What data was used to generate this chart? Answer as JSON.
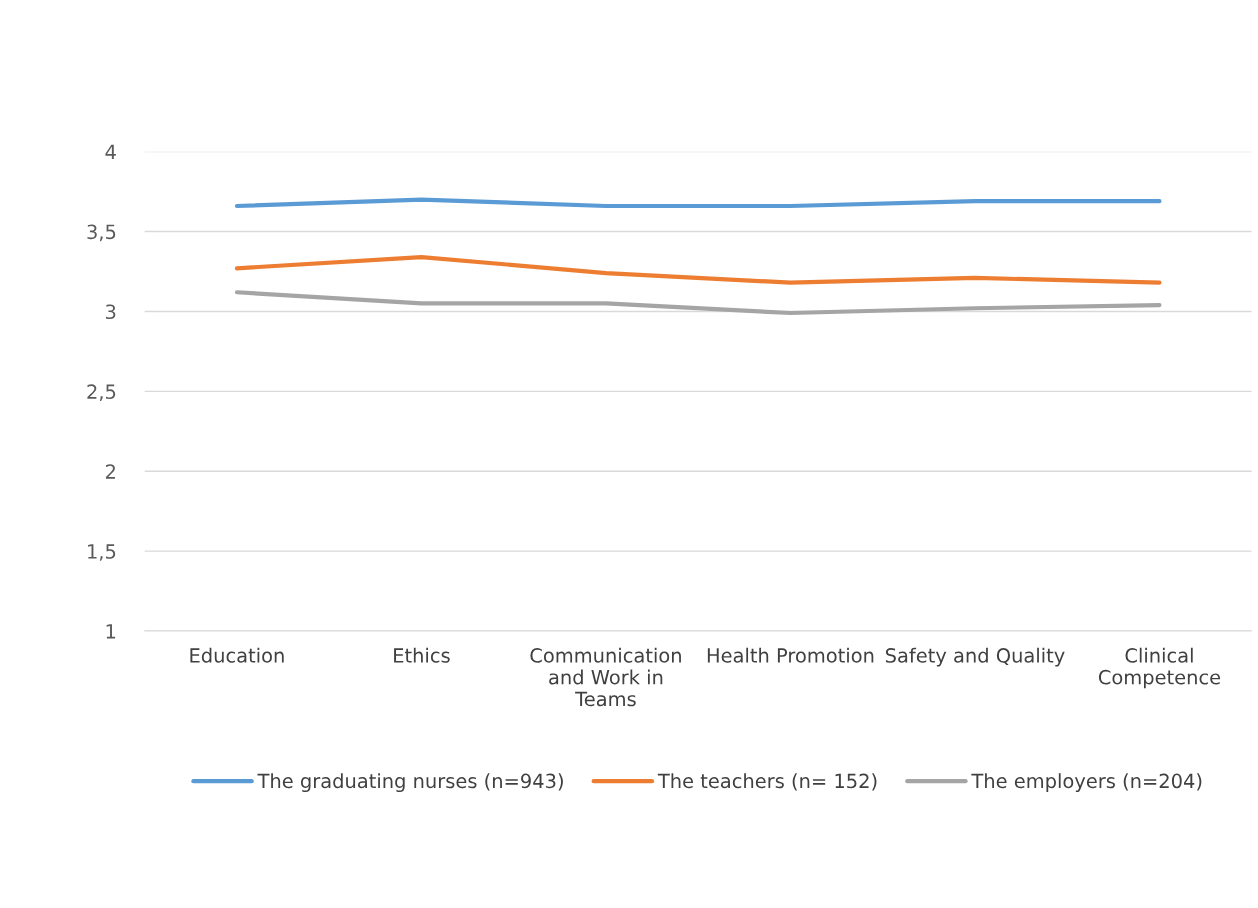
{
  "chart_data": {
    "type": "line",
    "categories": [
      "Education",
      "Ethics",
      "Communication\nand Work in\nTeams",
      "Health Promotion",
      "Safety and Quality",
      "Clinical\nCompetence"
    ],
    "series": [
      {
        "name": "The graduating nurses (n=943)",
        "color": "#5b9bd5",
        "values": [
          3.66,
          3.7,
          3.66,
          3.66,
          3.69,
          3.69
        ]
      },
      {
        "name": "The teachers (n= 152)",
        "color": "#ed7d31",
        "values": [
          3.27,
          3.34,
          3.24,
          3.18,
          3.21,
          3.18
        ]
      },
      {
        "name": "The employers (n=204)",
        "color": "#a5a5a5",
        "values": [
          3.12,
          3.05,
          3.05,
          2.99,
          3.02,
          3.04
        ]
      }
    ],
    "ylim": [
      1,
      4
    ],
    "yticks": [
      1,
      {
        "value": 1.5,
        "label": "1,5"
      },
      2,
      {
        "value": 2.5,
        "label": "2,5"
      },
      3,
      {
        "value": 3.5,
        "label": "3,5"
      },
      4
    ],
    "grid": "y",
    "legend": "bottom",
    "marker": "none",
    "line_style": "solid"
  }
}
